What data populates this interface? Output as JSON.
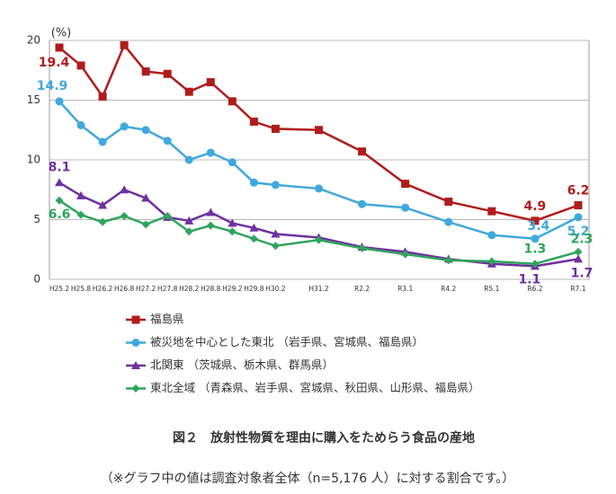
{
  "chart_data": {
    "type": "line",
    "y_unit": "(%)",
    "title": "図２　放射性物質を理由に購入をためらう食品の産地",
    "note": "（※グラフ中の値は調査対象者全体（n=5,176 人）に対する割合です。）",
    "categories": [
      "H25.2",
      "H25.8",
      "H26.2",
      "H26.8",
      "H27.2",
      "H27.8",
      "H28.2",
      "H28.8",
      "H29.2",
      "H29.8",
      "H30.2",
      null,
      "H31.2",
      null,
      "R2.2",
      null,
      "R3.1",
      null,
      "R4.2",
      null,
      "R5.1",
      null,
      "R6.2",
      null,
      "R7.1"
    ],
    "ylim": [
      0,
      20
    ],
    "yticks": [
      0,
      5,
      10,
      15,
      20
    ],
    "grid": true,
    "series": [
      {
        "name": "福島県",
        "color": "#b01c1c",
        "marker": "square",
        "values": [
          19.4,
          17.9,
          15.3,
          19.6,
          17.4,
          17.2,
          15.7,
          16.5,
          14.9,
          13.2,
          12.6,
          null,
          12.5,
          null,
          10.7,
          null,
          8.0,
          null,
          6.5,
          null,
          5.7,
          null,
          4.9,
          null,
          6.2
        ],
        "value_labels": [
          "19.4",
          null,
          null,
          null,
          null,
          null,
          null,
          null,
          null,
          null,
          null,
          null,
          null,
          null,
          null,
          null,
          null,
          null,
          null,
          null,
          null,
          null,
          "4.9",
          null,
          "6.2"
        ]
      },
      {
        "name": "被災地を中心とした東北 （岩手県、宮城県、福島県）",
        "color": "#3fa9dc",
        "marker": "circle",
        "values": [
          14.9,
          12.9,
          11.5,
          12.8,
          12.5,
          11.6,
          10.0,
          10.6,
          9.8,
          8.1,
          7.9,
          null,
          7.6,
          null,
          6.3,
          null,
          6.0,
          null,
          4.8,
          null,
          3.7,
          null,
          3.4,
          null,
          5.2
        ],
        "value_labels": [
          "14.9",
          null,
          null,
          null,
          null,
          null,
          null,
          null,
          null,
          null,
          null,
          null,
          null,
          null,
          null,
          null,
          null,
          null,
          null,
          null,
          null,
          null,
          "3.4",
          null,
          "5.2"
        ]
      },
      {
        "name": "北関東 （茨城県、栃木県、群馬県）",
        "color": "#7030a0",
        "marker": "triangle",
        "values": [
          8.1,
          7.0,
          6.2,
          7.5,
          6.8,
          5.2,
          4.9,
          5.6,
          4.7,
          4.3,
          3.8,
          null,
          3.5,
          null,
          2.7,
          null,
          2.3,
          null,
          1.7,
          null,
          1.3,
          null,
          1.1,
          null,
          1.7
        ],
        "value_labels": [
          "8.1",
          null,
          null,
          null,
          null,
          null,
          null,
          null,
          null,
          null,
          null,
          null,
          null,
          null,
          null,
          null,
          null,
          null,
          null,
          null,
          null,
          null,
          "1.1",
          null,
          "1.7"
        ]
      },
      {
        "name": "東北全域 （青森県、岩手県、宮城県、秋田県、山形県、福島県）",
        "color": "#2ea55b",
        "marker": "diamond",
        "values": [
          6.6,
          5.4,
          4.8,
          5.3,
          4.6,
          5.3,
          4.0,
          4.5,
          4.0,
          3.4,
          2.8,
          null,
          3.3,
          null,
          2.6,
          null,
          2.1,
          null,
          1.6,
          null,
          1.5,
          null,
          1.3,
          null,
          2.3
        ],
        "value_labels": [
          "6.6",
          null,
          null,
          null,
          null,
          null,
          null,
          null,
          null,
          null,
          null,
          null,
          null,
          null,
          null,
          null,
          null,
          null,
          null,
          null,
          null,
          null,
          "1.3",
          null,
          "2.3"
        ]
      }
    ]
  }
}
